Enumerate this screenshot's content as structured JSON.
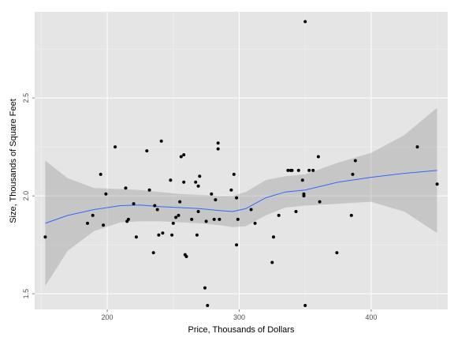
{
  "chart_data": {
    "type": "scatter",
    "title": "",
    "xlabel": "Price, Thousands of Dollars",
    "ylabel": "Size, Thousands of Square Feet",
    "xlim": [
      145,
      458
    ],
    "ylim": [
      1.42,
      2.94
    ],
    "x_ticks": [
      200,
      300,
      400
    ],
    "y_ticks": [
      1.5,
      2.0,
      2.5
    ],
    "x_tick_labels": [
      "200",
      "300",
      "400"
    ],
    "y_tick_labels": [
      "1.5",
      "2.0",
      "2.5"
    ],
    "grid": true,
    "legend": "none",
    "colors": {
      "panel": "#e5e5e5",
      "grid_major": "#ffffff",
      "grid_minor": "#f2f2f2",
      "points": "#000000",
      "smooth_line": "#3366ff",
      "ribbon": "#999999"
    },
    "points": [
      [
        153,
        1.79
      ],
      [
        185,
        1.86
      ],
      [
        189,
        1.9
      ],
      [
        195,
        2.11
      ],
      [
        197,
        1.85
      ],
      [
        199,
        2.01
      ],
      [
        206,
        2.25
      ],
      [
        214,
        2.04
      ],
      [
        215,
        1.87
      ],
      [
        216,
        1.88
      ],
      [
        220,
        1.96
      ],
      [
        222,
        1.79
      ],
      [
        230,
        2.23
      ],
      [
        232,
        2.03
      ],
      [
        235,
        1.71
      ],
      [
        236,
        1.95
      ],
      [
        238,
        1.93
      ],
      [
        239,
        1.8
      ],
      [
        241,
        2.28
      ],
      [
        242,
        1.81
      ],
      [
        248,
        2.08
      ],
      [
        249,
        1.8
      ],
      [
        250,
        1.86
      ],
      [
        252,
        1.89
      ],
      [
        254,
        1.9
      ],
      [
        255,
        1.97
      ],
      [
        256,
        2.2
      ],
      [
        258,
        2.21
      ],
      [
        258,
        2.07
      ],
      [
        259,
        1.7
      ],
      [
        260,
        1.69
      ],
      [
        264,
        1.88
      ],
      [
        267,
        2.07
      ],
      [
        268,
        1.8
      ],
      [
        269,
        2.05
      ],
      [
        269,
        1.92
      ],
      [
        270,
        2.1
      ],
      [
        274,
        1.53
      ],
      [
        275,
        1.87
      ],
      [
        276,
        1.44
      ],
      [
        279,
        2.01
      ],
      [
        281,
        1.88
      ],
      [
        282,
        1.98
      ],
      [
        284,
        2.27
      ],
      [
        284,
        2.24
      ],
      [
        285,
        1.88
      ],
      [
        294,
        2.03
      ],
      [
        296,
        2.11
      ],
      [
        298,
        1.99
      ],
      [
        298,
        1.75
      ],
      [
        299,
        1.88
      ],
      [
        309,
        1.93
      ],
      [
        312,
        1.86
      ],
      [
        325,
        1.66
      ],
      [
        326,
        1.79
      ],
      [
        330,
        1.9
      ],
      [
        337,
        2.13
      ],
      [
        339,
        2.13
      ],
      [
        340,
        2.13
      ],
      [
        343,
        1.92
      ],
      [
        345,
        2.13
      ],
      [
        348,
        2.08
      ],
      [
        349,
        2.01
      ],
      [
        349,
        2.0
      ],
      [
        350,
        1.44
      ],
      [
        350,
        2.89
      ],
      [
        353,
        2.13
      ],
      [
        356,
        2.13
      ],
      [
        360,
        2.2
      ],
      [
        361,
        1.97
      ],
      [
        374,
        1.71
      ],
      [
        385,
        1.9
      ],
      [
        386,
        2.11
      ],
      [
        388,
        2.18
      ],
      [
        435,
        2.25
      ],
      [
        450,
        2.06
      ]
    ],
    "smooth_fit": [
      [
        153,
        1.86
      ],
      [
        170,
        1.9
      ],
      [
        190,
        1.93
      ],
      [
        210,
        1.95
      ],
      [
        225,
        1.953
      ],
      [
        240,
        1.945
      ],
      [
        255,
        1.94
      ],
      [
        270,
        1.935
      ],
      [
        285,
        1.925
      ],
      [
        295,
        1.92
      ],
      [
        305,
        1.935
      ],
      [
        320,
        1.99
      ],
      [
        335,
        2.02
      ],
      [
        350,
        2.03
      ],
      [
        375,
        2.07
      ],
      [
        400,
        2.095
      ],
      [
        425,
        2.115
      ],
      [
        450,
        2.13
      ]
    ],
    "smooth_ci_upper": [
      [
        153,
        2.18
      ],
      [
        170,
        2.09
      ],
      [
        190,
        2.04
      ],
      [
        210,
        2.035
      ],
      [
        225,
        2.03
      ],
      [
        240,
        2.02
      ],
      [
        255,
        2.01
      ],
      [
        270,
        2.005
      ],
      [
        285,
        2.0
      ],
      [
        295,
        2.0
      ],
      [
        305,
        2.02
      ],
      [
        320,
        2.08
      ],
      [
        335,
        2.1
      ],
      [
        350,
        2.11
      ],
      [
        375,
        2.17
      ],
      [
        400,
        2.22
      ],
      [
        425,
        2.31
      ],
      [
        450,
        2.45
      ]
    ],
    "smooth_ci_lower": [
      [
        153,
        1.54
      ],
      [
        170,
        1.72
      ],
      [
        190,
        1.82
      ],
      [
        210,
        1.865
      ],
      [
        225,
        1.87
      ],
      [
        240,
        1.87
      ],
      [
        255,
        1.865
      ],
      [
        270,
        1.86
      ],
      [
        285,
        1.85
      ],
      [
        295,
        1.84
      ],
      [
        305,
        1.845
      ],
      [
        320,
        1.9
      ],
      [
        335,
        1.94
      ],
      [
        350,
        1.95
      ],
      [
        375,
        1.96
      ],
      [
        400,
        1.97
      ],
      [
        425,
        1.92
      ],
      [
        450,
        1.81
      ]
    ]
  }
}
